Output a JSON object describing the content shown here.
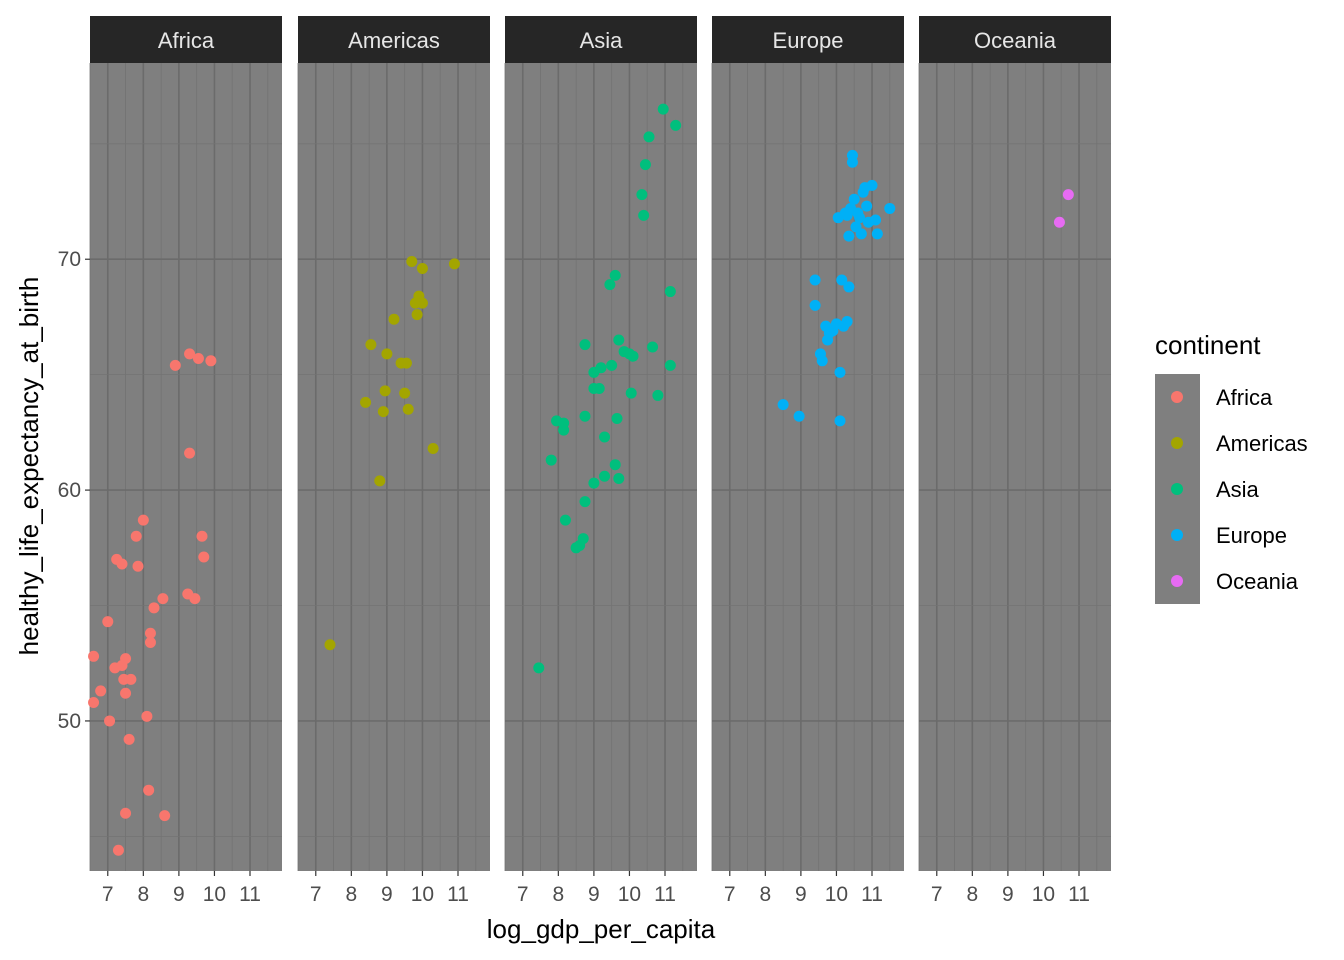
{
  "chart_data": {
    "type": "scatter",
    "facet_by": "continent",
    "facets": [
      "Africa",
      "Americas",
      "Asia",
      "Europe",
      "Oceania"
    ],
    "xlabel": "log_gdp_per_capita",
    "ylabel": "healthy_life_expectancy_at_birth",
    "xlim": [
      6.5,
      11.9
    ],
    "ylim": [
      43.5,
      78.5
    ],
    "x_ticks": [
      7,
      8,
      9,
      10,
      11
    ],
    "y_ticks": [
      50,
      60,
      70
    ],
    "grid": true,
    "legend_title": "continent",
    "legend_position": "right",
    "colors": {
      "Africa": "#F8766D",
      "Americas": "#A3A500",
      "Asia": "#00BF7D",
      "Europe": "#00B0F6",
      "Oceania": "#E76BF3"
    },
    "series": [
      {
        "name": "Africa",
        "points": [
          [
            6.6,
            52.8
          ],
          [
            6.6,
            50.8
          ],
          [
            6.8,
            51.3
          ],
          [
            7.0,
            54.3
          ],
          [
            7.05,
            50.0
          ],
          [
            7.2,
            52.3
          ],
          [
            7.25,
            57.0
          ],
          [
            7.3,
            44.4
          ],
          [
            7.4,
            52.4
          ],
          [
            7.4,
            56.8
          ],
          [
            7.45,
            51.8
          ],
          [
            7.5,
            51.2
          ],
          [
            7.5,
            52.7
          ],
          [
            7.5,
            46.0
          ],
          [
            7.6,
            49.2
          ],
          [
            7.65,
            51.8
          ],
          [
            7.8,
            58.0
          ],
          [
            7.85,
            56.7
          ],
          [
            8.0,
            58.7
          ],
          [
            8.1,
            50.2
          ],
          [
            8.15,
            47.0
          ],
          [
            8.2,
            53.4
          ],
          [
            8.2,
            53.8
          ],
          [
            8.3,
            54.9
          ],
          [
            8.55,
            55.3
          ],
          [
            8.6,
            45.9
          ],
          [
            8.9,
            65.4
          ],
          [
            9.25,
            55.5
          ],
          [
            9.3,
            61.6
          ],
          [
            9.3,
            65.9
          ],
          [
            9.45,
            55.3
          ],
          [
            9.55,
            65.7
          ],
          [
            9.65,
            58.0
          ],
          [
            9.7,
            57.1
          ],
          [
            9.9,
            65.6
          ]
        ]
      },
      {
        "name": "Americas",
        "points": [
          [
            7.4,
            53.3
          ],
          [
            8.4,
            63.8
          ],
          [
            8.55,
            66.3
          ],
          [
            8.8,
            60.4
          ],
          [
            8.9,
            63.4
          ],
          [
            8.95,
            64.3
          ],
          [
            9.0,
            65.9
          ],
          [
            9.2,
            67.4
          ],
          [
            9.4,
            65.5
          ],
          [
            9.5,
            64.2
          ],
          [
            9.55,
            65.5
          ],
          [
            9.6,
            63.5
          ],
          [
            9.7,
            69.9
          ],
          [
            9.8,
            68.1
          ],
          [
            9.85,
            67.6
          ],
          [
            9.9,
            68.4
          ],
          [
            10.0,
            69.6
          ],
          [
            10.0,
            68.1
          ],
          [
            10.3,
            61.8
          ],
          [
            10.9,
            69.8
          ]
        ]
      },
      {
        "name": "Asia",
        "points": [
          [
            7.45,
            52.3
          ],
          [
            7.8,
            61.3
          ],
          [
            7.95,
            63.0
          ],
          [
            8.15,
            62.9
          ],
          [
            8.15,
            62.6
          ],
          [
            8.2,
            58.7
          ],
          [
            8.5,
            57.5
          ],
          [
            8.6,
            57.6
          ],
          [
            8.7,
            57.9
          ],
          [
            8.75,
            59.5
          ],
          [
            8.75,
            63.2
          ],
          [
            8.75,
            66.3
          ],
          [
            9.0,
            60.3
          ],
          [
            9.0,
            64.4
          ],
          [
            9.0,
            65.1
          ],
          [
            9.15,
            64.4
          ],
          [
            9.2,
            65.3
          ],
          [
            9.3,
            62.3
          ],
          [
            9.3,
            60.6
          ],
          [
            9.45,
            68.9
          ],
          [
            9.5,
            65.4
          ],
          [
            9.6,
            69.3
          ],
          [
            9.6,
            61.1
          ],
          [
            9.65,
            63.1
          ],
          [
            9.7,
            60.5
          ],
          [
            9.7,
            66.5
          ],
          [
            9.85,
            66.0
          ],
          [
            10.0,
            65.9
          ],
          [
            10.05,
            64.2
          ],
          [
            10.1,
            65.8
          ],
          [
            10.35,
            72.8
          ],
          [
            10.4,
            71.9
          ],
          [
            10.45,
            74.1
          ],
          [
            10.55,
            75.3
          ],
          [
            10.65,
            66.2
          ],
          [
            10.8,
            64.1
          ],
          [
            10.95,
            76.5
          ],
          [
            11.15,
            68.6
          ],
          [
            11.15,
            65.4
          ],
          [
            11.3,
            75.8
          ]
        ]
      },
      {
        "name": "Europe",
        "points": [
          [
            8.5,
            63.7
          ],
          [
            8.95,
            63.2
          ],
          [
            9.4,
            69.1
          ],
          [
            9.4,
            68.0
          ],
          [
            9.55,
            65.9
          ],
          [
            9.6,
            65.6
          ],
          [
            9.7,
            67.1
          ],
          [
            9.75,
            66.5
          ],
          [
            9.8,
            66.8
          ],
          [
            9.9,
            66.9
          ],
          [
            10.0,
            67.2
          ],
          [
            10.05,
            71.8
          ],
          [
            10.1,
            65.1
          ],
          [
            10.1,
            63.0
          ],
          [
            10.15,
            69.1
          ],
          [
            10.2,
            67.1
          ],
          [
            10.25,
            72.0
          ],
          [
            10.3,
            71.9
          ],
          [
            10.3,
            67.3
          ],
          [
            10.35,
            68.8
          ],
          [
            10.35,
            71.0
          ],
          [
            10.4,
            72.2
          ],
          [
            10.45,
            74.5
          ],
          [
            10.45,
            74.2
          ],
          [
            10.5,
            72.6
          ],
          [
            10.55,
            71.4
          ],
          [
            10.6,
            72.0
          ],
          [
            10.65,
            71.8
          ],
          [
            10.7,
            71.1
          ],
          [
            10.75,
            72.9
          ],
          [
            10.8,
            73.1
          ],
          [
            10.85,
            72.3
          ],
          [
            10.9,
            71.6
          ],
          [
            11.0,
            73.2
          ],
          [
            11.1,
            71.7
          ],
          [
            11.15,
            71.1
          ],
          [
            11.5,
            72.2
          ]
        ]
      },
      {
        "name": "Oceania",
        "points": [
          [
            10.45,
            71.6
          ],
          [
            10.7,
            72.8
          ]
        ]
      }
    ]
  }
}
